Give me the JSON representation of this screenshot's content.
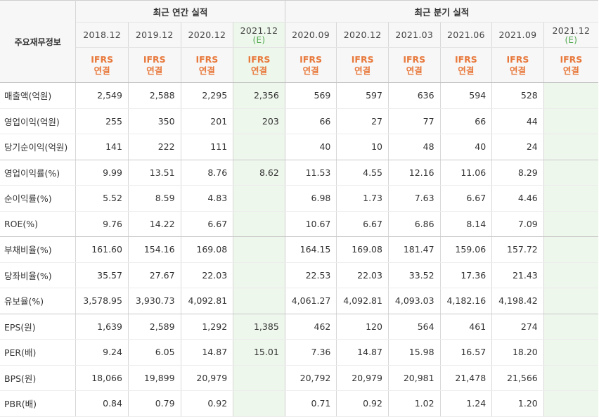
{
  "header": {
    "label_title": "주요재무정보",
    "annual_title": "최근 연간 실적",
    "quarter_title": "최근 분기 실적"
  },
  "periods": {
    "annual": [
      {
        "label": "2018.12",
        "sub": ""
      },
      {
        "label": "2019.12",
        "sub": ""
      },
      {
        "label": "2020.12",
        "sub": ""
      },
      {
        "label": "2021.12",
        "sub": "(E)"
      }
    ],
    "quarter": [
      {
        "label": "2020.09",
        "sub": ""
      },
      {
        "label": "2020.12",
        "sub": ""
      },
      {
        "label": "2021.03",
        "sub": ""
      },
      {
        "label": "2021.06",
        "sub": ""
      },
      {
        "label": "2021.09",
        "sub": ""
      },
      {
        "label": "2021.12",
        "sub": "(E)"
      }
    ]
  },
  "basis": {
    "line1": "IFRS",
    "line2": "연결"
  },
  "rows": [
    {
      "label": "매출액(억원)",
      "values": [
        "2,549",
        "2,588",
        "2,295",
        "2,356",
        "569",
        "597",
        "636",
        "594",
        "528",
        ""
      ]
    },
    {
      "label": "영업이익(억원)",
      "values": [
        "255",
        "350",
        "201",
        "203",
        "66",
        "27",
        "77",
        "66",
        "44",
        ""
      ]
    },
    {
      "label": "당기순이익(억원)",
      "values": [
        "141",
        "222",
        "111",
        "",
        "40",
        "10",
        "48",
        "40",
        "24",
        ""
      ]
    },
    {
      "label": "영업이익률(%)",
      "values": [
        "9.99",
        "13.51",
        "8.76",
        "8.62",
        "11.53",
        "4.55",
        "12.16",
        "11.06",
        "8.29",
        ""
      ]
    },
    {
      "label": "순이익률(%)",
      "values": [
        "5.52",
        "8.59",
        "4.83",
        "",
        "6.98",
        "1.73",
        "7.63",
        "6.67",
        "4.46",
        ""
      ]
    },
    {
      "label": "ROE(%)",
      "values": [
        "9.76",
        "14.22",
        "6.67",
        "",
        "10.67",
        "6.67",
        "6.86",
        "8.14",
        "7.09",
        ""
      ]
    },
    {
      "label": "부채비율(%)",
      "values": [
        "161.60",
        "154.16",
        "169.08",
        "",
        "164.15",
        "169.08",
        "181.47",
        "159.06",
        "157.72",
        ""
      ]
    },
    {
      "label": "당좌비율(%)",
      "values": [
        "35.57",
        "27.67",
        "22.03",
        "",
        "22.53",
        "22.03",
        "33.52",
        "17.36",
        "21.43",
        ""
      ]
    },
    {
      "label": "유보율(%)",
      "values": [
        "3,578.95",
        "3,930.73",
        "4,092.81",
        "",
        "4,061.27",
        "4,092.81",
        "4,093.03",
        "4,182.16",
        "4,198.42",
        ""
      ]
    },
    {
      "label": "EPS(원)",
      "values": [
        "1,639",
        "2,589",
        "1,292",
        "1,385",
        "462",
        "120",
        "564",
        "461",
        "274",
        ""
      ]
    },
    {
      "label": "PER(배)",
      "values": [
        "9.24",
        "6.05",
        "14.87",
        "15.01",
        "7.36",
        "14.87",
        "15.98",
        "16.57",
        "18.20",
        ""
      ]
    },
    {
      "label": "BPS(원)",
      "values": [
        "18,066",
        "19,899",
        "20,979",
        "",
        "20,792",
        "20,979",
        "20,981",
        "21,478",
        "21,566",
        ""
      ]
    },
    {
      "label": "PBR(배)",
      "values": [
        "0.84",
        "0.79",
        "0.92",
        "",
        "0.71",
        "0.92",
        "1.02",
        "1.24",
        "1.20",
        ""
      ]
    }
  ]
}
